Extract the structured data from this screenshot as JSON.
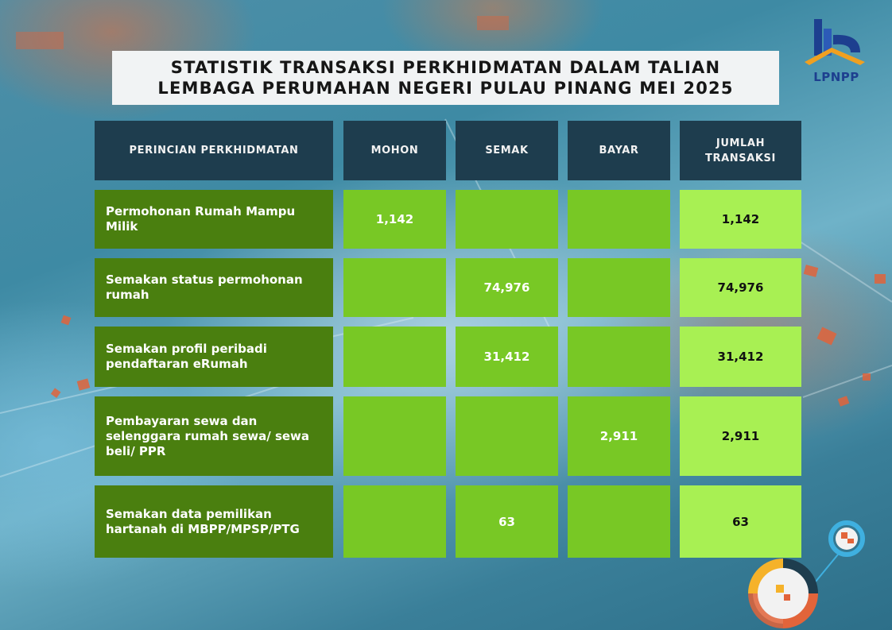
{
  "title": {
    "line1": "STATISTIK TRANSAKSI PERKHIDMATAN DALAM TALIAN",
    "line2": "LEMBAGA PERUMAHAN NEGERI PULAU PINANG MEI 2025"
  },
  "logo": {
    "text": "LPNPP",
    "icon": "lpnpp-building-logo",
    "color": "#1d3f8f",
    "accent": "#f0a020"
  },
  "table": {
    "headers": {
      "service": "PERINCIAN PERKHIDMATAN",
      "mohon": "MOHON",
      "semak": "SEMAK",
      "bayar": "BAYAR",
      "total_l1": "JUMLAH",
      "total_l2": "TRANSAKSI"
    },
    "rows": [
      {
        "label_l1": "Permohonan Rumah Mampu",
        "label_l2": "Milik",
        "label_l3": "",
        "mohon": "1,142",
        "semak": "",
        "bayar": "",
        "total": "1,142"
      },
      {
        "label_l1": "Semakan status permohonan",
        "label_l2": "rumah",
        "label_l3": "",
        "mohon": "",
        "semak": "74,976",
        "bayar": "",
        "total": "74,976"
      },
      {
        "label_l1": "Semakan profil peribadi",
        "label_l2": "pendaftaran eRumah",
        "label_l3": "",
        "mohon": "",
        "semak": "31,412",
        "bayar": "",
        "total": "31,412"
      },
      {
        "label_l1": "Pembayaran sewa dan",
        "label_l2": "selenggara rumah sewa/ sewa",
        "label_l3": "beli/ PPR",
        "mohon": "",
        "semak": "",
        "bayar": "2,911",
        "total": "2,911"
      },
      {
        "label_l1": "Semakan data pemilikan",
        "label_l2": "hartanah di MBPP/MPSP/PTG",
        "label_l3": "",
        "mohon": "",
        "semak": "63",
        "bayar": "",
        "total": "63"
      }
    ]
  },
  "colors": {
    "header_bg": "#1e3d4e",
    "label_bg": "#4a7f0f",
    "value_bg": "#78c825",
    "total_bg": "#a8f053",
    "title_bg": "#f1f3f4"
  },
  "decorations": {
    "bottom_right": "donut-chart-decoration-icon"
  }
}
